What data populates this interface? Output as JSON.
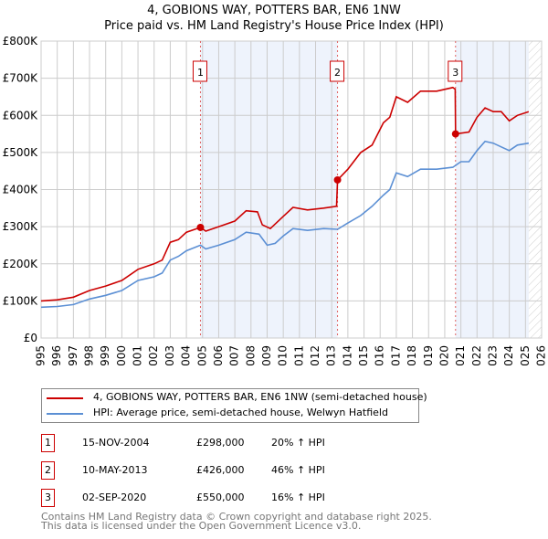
{
  "title": "4, GOBIONS WAY, POTTERS BAR, EN6 1NW",
  "subtitle": "Price paid vs. HM Land Registry's House Price Index (HPI)",
  "chart_data": {
    "type": "line",
    "xlim": [
      1995,
      2026
    ],
    "ylim": [
      0,
      800000
    ],
    "xticks": [
      "1995",
      "1996",
      "1997",
      "1998",
      "1999",
      "2000",
      "2001",
      "2002",
      "2003",
      "2004",
      "2005",
      "2006",
      "2007",
      "2008",
      "2009",
      "2010",
      "2011",
      "2012",
      "2013",
      "2014",
      "2015",
      "2016",
      "2017",
      "2018",
      "2019",
      "2020",
      "2021",
      "2022",
      "2023",
      "2024",
      "2025",
      "2026"
    ],
    "yticks": [
      {
        "v": 0,
        "l": "£0"
      },
      {
        "v": 100000,
        "l": "£100K"
      },
      {
        "v": 200000,
        "l": "£200K"
      },
      {
        "v": 300000,
        "l": "£300K"
      },
      {
        "v": 400000,
        "l": "£400K"
      },
      {
        "v": 500000,
        "l": "£500K"
      },
      {
        "v": 600000,
        "l": "£600K"
      },
      {
        "v": 700000,
        "l": "£700K"
      },
      {
        "v": 800000,
        "l": "£800K"
      }
    ],
    "grid": true,
    "shaded": [
      [
        2004.87,
        2013.36
      ],
      [
        2020.67,
        2025.2
      ]
    ],
    "forecast_from": 2025.2,
    "series": [
      {
        "name": "4, GOBIONS WAY, POTTERS BAR, EN6 1NW (semi-detached house)",
        "color": "#cc0000",
        "x": [
          1995,
          1996,
          1997,
          1998,
          1999,
          2000,
          2001,
          2002,
          2002.5,
          2003,
          2003.5,
          2004,
          2004.87,
          2005.2,
          2006,
          2007,
          2007.7,
          2008.4,
          2008.7,
          2009.2,
          2010,
          2010.6,
          2011.5,
          2012.5,
          2013.3,
          2013.36,
          2014,
          2014.8,
          2015.5,
          2016.2,
          2016.6,
          2017,
          2017.7,
          2018.5,
          2019.5,
          2020.5,
          2020.65,
          2020.67,
          2021.5,
          2022,
          2022.5,
          2023,
          2023.5,
          2024,
          2024.5,
          2025.2
        ],
        "y": [
          100000,
          103000,
          110000,
          128000,
          140000,
          155000,
          185000,
          200000,
          210000,
          258000,
          265000,
          285000,
          298000,
          288000,
          300000,
          315000,
          343000,
          340000,
          305000,
          295000,
          328000,
          352000,
          345000,
          350000,
          355000,
          426000,
          455000,
          500000,
          520000,
          580000,
          595000,
          650000,
          635000,
          665000,
          665000,
          675000,
          670000,
          550000,
          555000,
          595000,
          620000,
          610000,
          610000,
          585000,
          600000,
          610000
        ]
      },
      {
        "name": "HPI: Average price, semi-detached house, Welwyn Hatfield",
        "color": "#5b8fd4",
        "x": [
          1995,
          1996,
          1997,
          1998,
          1999,
          2000,
          2001,
          2002,
          2002.5,
          2003,
          2003.5,
          2004,
          2004.87,
          2005.2,
          2006,
          2007,
          2007.7,
          2008.5,
          2009,
          2009.5,
          2010,
          2010.6,
          2011.5,
          2012.5,
          2013.36,
          2014,
          2014.8,
          2015.5,
          2016.2,
          2016.6,
          2017,
          2017.7,
          2018.5,
          2019.5,
          2020.5,
          2021,
          2021.5,
          2022,
          2022.5,
          2023,
          2023.5,
          2024,
          2024.5,
          2025.2
        ],
        "y": [
          83000,
          85000,
          90000,
          105000,
          115000,
          128000,
          155000,
          165000,
          175000,
          210000,
          220000,
          235000,
          250000,
          240000,
          250000,
          265000,
          285000,
          280000,
          250000,
          255000,
          275000,
          295000,
          290000,
          295000,
          293000,
          310000,
          330000,
          355000,
          385000,
          400000,
          445000,
          435000,
          455000,
          455000,
          460000,
          475000,
          475000,
          505000,
          530000,
          525000,
          515000,
          505000,
          520000,
          525000
        ]
      }
    ],
    "sales": [
      {
        "label": "1",
        "x": 2004.87,
        "y": 298000
      },
      {
        "label": "2",
        "x": 2013.36,
        "y": 426000
      },
      {
        "label": "3",
        "x": 2020.67,
        "y": 550000
      }
    ]
  },
  "legend": {
    "property": "4, GOBIONS WAY, POTTERS BAR, EN6 1NW (semi-detached house)",
    "hpi": "HPI: Average price, semi-detached house, Welwyn Hatfield"
  },
  "transactions": [
    {
      "num": "1",
      "date": "15-NOV-2004",
      "price": "£298,000",
      "hpi": "20% ↑ HPI"
    },
    {
      "num": "2",
      "date": "10-MAY-2013",
      "price": "£426,000",
      "hpi": "46% ↑ HPI"
    },
    {
      "num": "3",
      "date": "02-SEP-2020",
      "price": "£550,000",
      "hpi": "16% ↑ HPI"
    }
  ],
  "footer": {
    "line1": "Contains HM Land Registry data © Crown copyright and database right 2025.",
    "line2": "This data is licensed under the Open Government Licence v3.0."
  }
}
